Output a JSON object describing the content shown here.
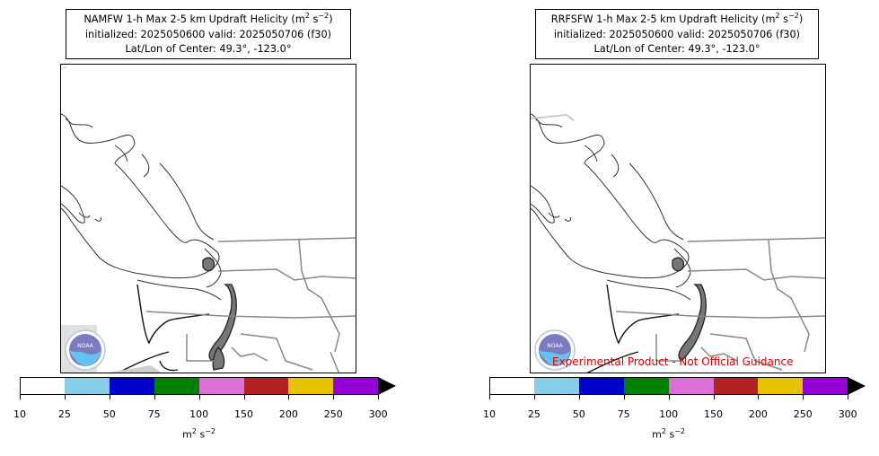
{
  "panels": [
    {
      "title_line1": "NAMFW 1-h Max 2-5 km Updraft Helicity (m",
      "title_sup1": "2",
      "title_mid": " s",
      "title_sup2": "−2",
      "title_end": ")",
      "title_line2": "initialized: 2025050600 valid: 2025050706 (f30)",
      "title_line3": "Lat/Lon of Center: 49.3°, -123.0°",
      "watermark": ""
    },
    {
      "title_line1": "RRFSFW 1-h Max 2-5 km Updraft Helicity (m",
      "title_sup1": "2",
      "title_mid": " s",
      "title_sup2": "−2",
      "title_end": ")",
      "title_line2": "initialized: 2025050600 valid: 2025050706 (f30)",
      "title_line3": "Lat/Lon of Center: 49.3°, -123.0°",
      "watermark": "Experimental Product - Not Official Guidance"
    }
  ],
  "colorbar": {
    "ticks": [
      "10",
      "25",
      "50",
      "75",
      "100",
      "150",
      "200",
      "250",
      "300"
    ],
    "colors": [
      "#ffffff",
      "#87ceeb",
      "#0000cd",
      "#008000",
      "#da70d6",
      "#b22222",
      "#e6c200",
      "#9400d3"
    ],
    "extend_color": "#000000",
    "label": "m",
    "label_sup1": "2",
    "label_mid": " s",
    "label_sup2": "−2"
  },
  "logo": {
    "text": "NOAA",
    "icon": "noaa-logo-icon"
  }
}
